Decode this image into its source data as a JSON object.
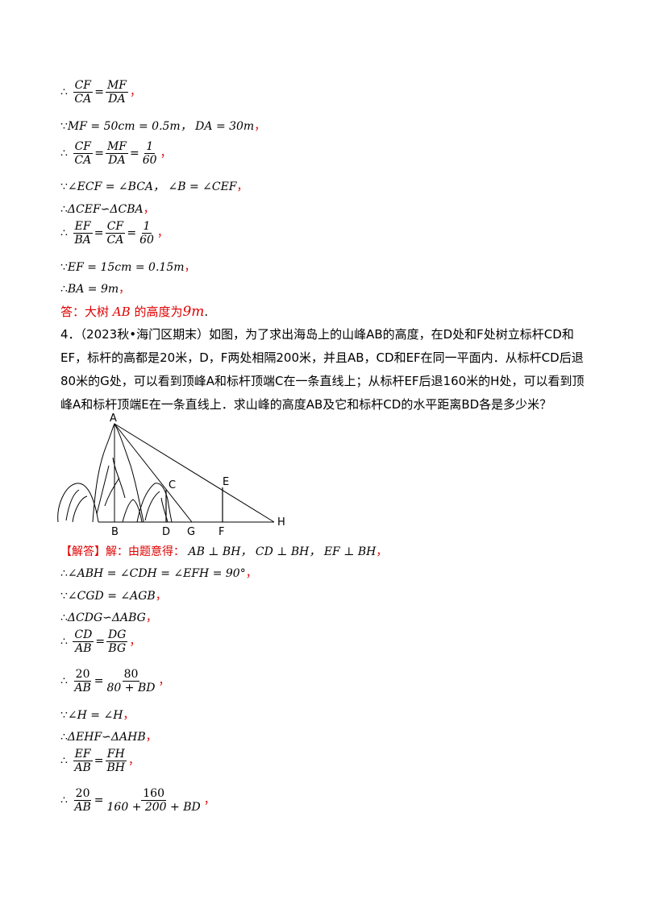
{
  "therefore": "∴",
  "because": "∵",
  "comma_red": "，",
  "steps_top": [
    {
      "kind": "frac_eq",
      "sym": "∴",
      "a_num": "CF",
      "a_den": "CA",
      "b_num": "MF",
      "b_den": "DA"
    },
    {
      "kind": "text",
      "sym": "∵",
      "text": "MF = 50cm = 0.5m，  DA = 30m"
    },
    {
      "kind": "frac_eq3",
      "sym": "∴",
      "a_num": "CF",
      "a_den": "CA",
      "b_num": "MF",
      "b_den": "DA",
      "c_num": "1",
      "c_den": "60"
    },
    {
      "kind": "text",
      "sym": "∵",
      "text": "∠ECF = ∠BCA，  ∠B = ∠CEF"
    },
    {
      "kind": "text",
      "sym": "∴",
      "text": "ΔCEF∽ΔCBA"
    },
    {
      "kind": "frac_eq3",
      "sym": "∴",
      "a_num": "EF",
      "a_den": "BA",
      "b_num": "CF",
      "b_den": "CA",
      "c_num": "1",
      "c_den": "60"
    },
    {
      "kind": "text",
      "sym": "∵",
      "text": "EF = 15cm = 0.15m"
    },
    {
      "kind": "text",
      "sym": "∴",
      "text": "BA = 9m"
    }
  ],
  "answer": {
    "prefix": "答：大树",
    "var": "AB",
    "mid": "的高度为",
    "value": "9m",
    "end": "."
  },
  "problem": {
    "number": "4．",
    "source": "（2023秋•海门区期末）",
    "text": "如图，为了求出海岛上的山峰AB的高度，在D处和F处树立标杆CD和EF，标杆的高都是20米，D，F两处相隔200米，并且AB，CD和EF在同一平面内．从标杆CD后退80米的G处，可以看到顶峰A和标杆顶端C在一条直线上；从标杆EF后退160米的H处，可以看到顶峰A和标杆顶端E在一条直线上．求山峰的高度AB及它和标杆CD的水平距离BD各是多少米？"
  },
  "figure": {
    "labels": {
      "A": "A",
      "B": "B",
      "C": "C",
      "D": "D",
      "E": "E",
      "F": "F",
      "G": "G",
      "H": "H"
    }
  },
  "solution_head": "【解答】解：由题意得：",
  "solution_head_math": "AB ⊥ BH，  CD ⊥ BH，  EF ⊥ BH",
  "steps_bottom": [
    {
      "kind": "text",
      "sym": "∴",
      "text": "∠ABH = ∠CDH = ∠EFH = 90°"
    },
    {
      "kind": "text",
      "sym": "∵",
      "text": "∠CGD = ∠AGB"
    },
    {
      "kind": "text",
      "sym": "∴",
      "text": "ΔCDG∽ΔABG"
    },
    {
      "kind": "frac_eq",
      "sym": "∴",
      "a_num": "CD",
      "a_den": "AB",
      "b_num": "DG",
      "b_den": "BG"
    },
    {
      "kind": "frac_eq",
      "sym": "∴",
      "a_num": "20",
      "a_den": "AB",
      "b_num": "80",
      "b_den": "80 + BD"
    },
    {
      "kind": "text",
      "sym": "∵",
      "text": "∠H = ∠H"
    },
    {
      "kind": "text",
      "sym": "∴",
      "text": "ΔEHF∽ΔAHB"
    },
    {
      "kind": "frac_eq",
      "sym": "∴",
      "a_num": "EF",
      "a_den": "AB",
      "b_num": "FH",
      "b_den": "BH"
    },
    {
      "kind": "frac_eq",
      "sym": "∴",
      "a_num": "20",
      "a_den": "AB",
      "b_num": "160",
      "b_den": "160 + 200 + BD"
    }
  ]
}
